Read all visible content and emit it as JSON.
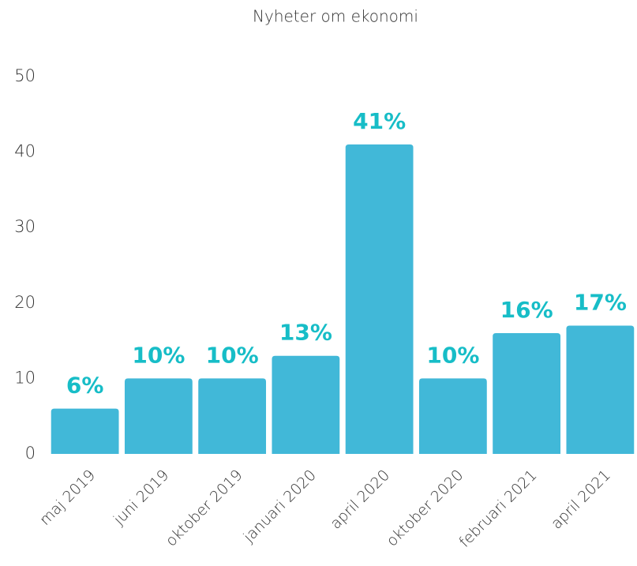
{
  "chart_data": {
    "type": "bar",
    "title": "Nyheter om ekonomi",
    "categories": [
      "maj 2019",
      "juni 2019",
      "oktober 2019",
      "januari 2020",
      "april 2020",
      "oktober 2020",
      "februari 2021",
      "april 2021"
    ],
    "values": [
      6,
      10,
      10,
      13,
      41,
      10,
      16,
      17
    ],
    "value_labels": [
      "6%",
      "10%",
      "10%",
      "13%",
      "41%",
      "10%",
      "16%",
      "17%"
    ],
    "color": "#41b8d8",
    "label_color": "#17bdc7",
    "ylim": [
      0,
      50
    ],
    "yticks": [
      0,
      10,
      20,
      30,
      40,
      50
    ],
    "grid": false
  }
}
